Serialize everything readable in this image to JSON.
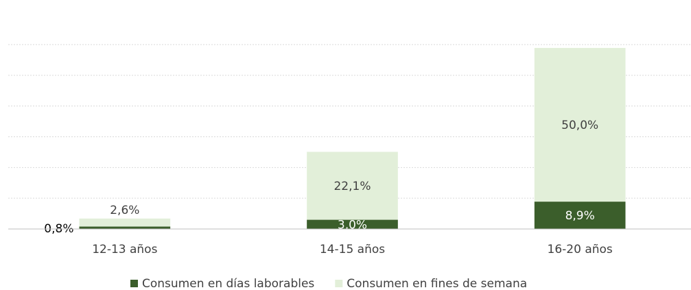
{
  "chart_data": {
    "type": "stacked_bar",
    "categories": [
      "12-13 años",
      "14-15 años",
      "16-20 años"
    ],
    "series": [
      {
        "name": "Consumen en días laborables",
        "color": "#3b5e2b",
        "values": [
          0.8,
          3.0,
          8.9
        ],
        "value_labels": [
          "0,8%",
          "3,0%",
          "8,9%"
        ]
      },
      {
        "name": "Consumen en fines de semana",
        "color": "#e2efd9",
        "values": [
          2.6,
          22.1,
          50.0
        ],
        "value_labels": [
          "2,6%",
          "22,1%",
          "50,0%"
        ]
      }
    ],
    "ylim": [
      0,
      60
    ],
    "yticks": [
      0,
      10,
      20,
      30,
      40,
      50,
      60
    ],
    "grid": true,
    "legend": "bottom"
  }
}
